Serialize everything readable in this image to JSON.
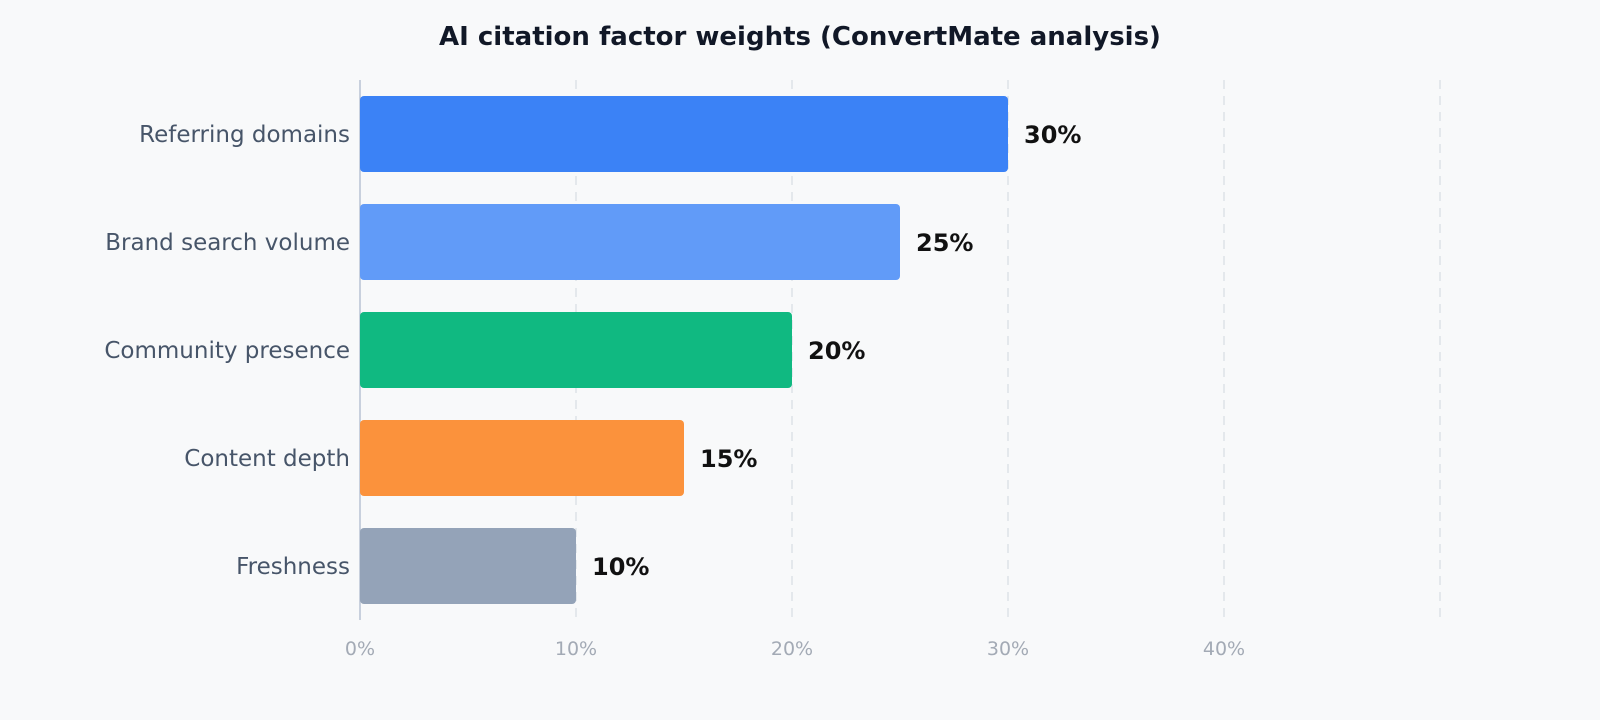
{
  "chart_data": {
    "type": "bar",
    "orientation": "horizontal",
    "title": "AI citation factor weights (ConvertMate analysis)",
    "categories": [
      "Referring domains",
      "Brand search volume",
      "Community presence",
      "Content depth",
      "Freshness"
    ],
    "values": [
      30,
      25,
      20,
      15,
      10
    ],
    "value_labels": [
      "30%",
      "25%",
      "20%",
      "15%",
      "10%"
    ],
    "colors": [
      "#3b82f6",
      "#619bf8",
      "#10b981",
      "#fb923c",
      "#94a3b8"
    ],
    "xlim": [
      0,
      50
    ],
    "x_ticks": [
      0,
      10,
      20,
      30,
      40
    ],
    "x_tick_labels": [
      "0%",
      "10%",
      "20%",
      "30%",
      "40%"
    ],
    "grid": "vertical dashed",
    "legend": "none"
  }
}
